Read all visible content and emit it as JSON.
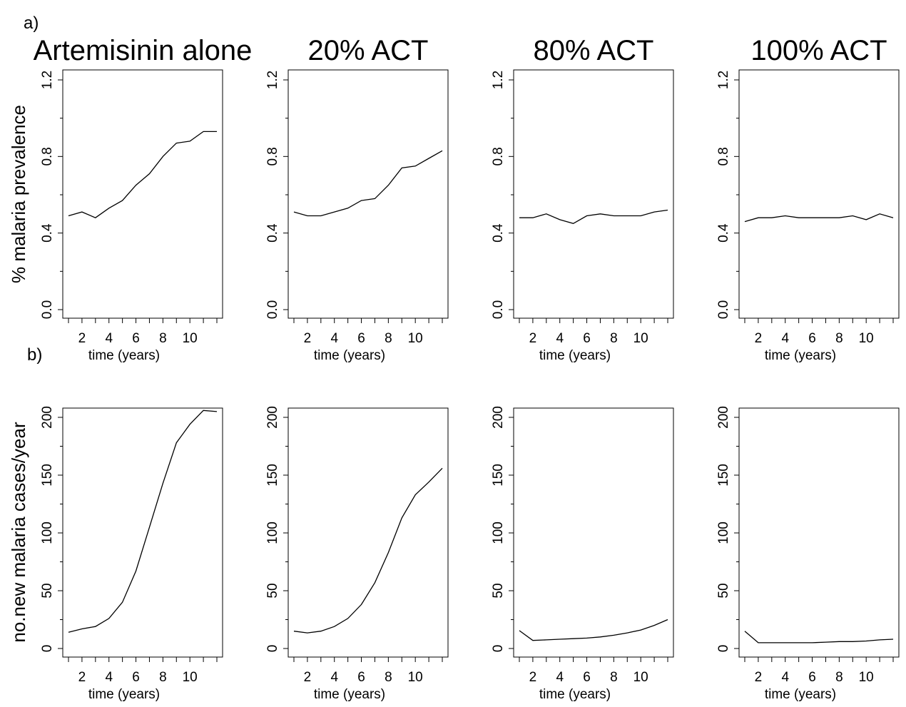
{
  "panel_labels": {
    "a": "a)",
    "b": "b)"
  },
  "column_titles": [
    "Artemisinin alone",
    "20% ACT",
    "80% ACT",
    "100% ACT"
  ],
  "chart_data": [
    {
      "type": "line",
      "row": "a",
      "title": "Artemisinin alone",
      "xlabel": "time (years)",
      "ylabel": "% malaria prevalence",
      "xlim": [
        1,
        12
      ],
      "ylim": [
        0,
        1.2
      ],
      "xticks": [
        2,
        4,
        6,
        8,
        10
      ],
      "yticks": [
        0.0,
        0.4,
        0.8,
        1.2
      ],
      "ytick_labels": [
        "0.0",
        "0.4",
        "0.8",
        "1.2"
      ],
      "x": [
        1,
        2,
        3,
        4,
        5,
        6,
        7,
        8,
        9,
        10,
        11,
        12
      ],
      "y": [
        0.49,
        0.51,
        0.48,
        0.53,
        0.57,
        0.65,
        0.71,
        0.8,
        0.87,
        0.88,
        0.93,
        0.93
      ]
    },
    {
      "type": "line",
      "row": "a",
      "title": "20% ACT",
      "xlabel": "time (years)",
      "ylabel": "",
      "xlim": [
        1,
        12
      ],
      "ylim": [
        0,
        1.2
      ],
      "xticks": [
        2,
        4,
        6,
        8,
        10
      ],
      "yticks": [
        0.0,
        0.4,
        0.8,
        1.2
      ],
      "ytick_labels": [
        "0.0",
        "0.4",
        "0.8",
        "1.2"
      ],
      "x": [
        1,
        2,
        3,
        4,
        5,
        6,
        7,
        8,
        9,
        10,
        11,
        12
      ],
      "y": [
        0.51,
        0.49,
        0.49,
        0.51,
        0.53,
        0.57,
        0.58,
        0.65,
        0.74,
        0.75,
        0.79,
        0.83
      ]
    },
    {
      "type": "line",
      "row": "a",
      "title": "80% ACT",
      "xlabel": "time (years)",
      "ylabel": "",
      "xlim": [
        1,
        12
      ],
      "ylim": [
        0,
        1.2
      ],
      "xticks": [
        2,
        4,
        6,
        8,
        10
      ],
      "yticks": [
        0.0,
        0.4,
        0.8,
        1.2
      ],
      "ytick_labels": [
        "0.0",
        "0.4",
        "0.8",
        "1.2"
      ],
      "x": [
        1,
        2,
        3,
        4,
        5,
        6,
        7,
        8,
        9,
        10,
        11,
        12
      ],
      "y": [
        0.48,
        0.48,
        0.5,
        0.47,
        0.45,
        0.49,
        0.5,
        0.49,
        0.49,
        0.49,
        0.51,
        0.52
      ]
    },
    {
      "type": "line",
      "row": "a",
      "title": "100% ACT",
      "xlabel": "time (years)",
      "ylabel": "",
      "xlim": [
        1,
        12
      ],
      "ylim": [
        0,
        1.2
      ],
      "xticks": [
        2,
        4,
        6,
        8,
        10
      ],
      "yticks": [
        0.0,
        0.4,
        0.8,
        1.2
      ],
      "ytick_labels": [
        "0.0",
        "0.4",
        "0.8",
        "1.2"
      ],
      "x": [
        1,
        2,
        3,
        4,
        5,
        6,
        7,
        8,
        9,
        10,
        11,
        12
      ],
      "y": [
        0.46,
        0.48,
        0.48,
        0.49,
        0.48,
        0.48,
        0.48,
        0.48,
        0.49,
        0.47,
        0.5,
        0.48
      ]
    },
    {
      "type": "line",
      "row": "b",
      "title": "",
      "xlabel": "time (years)",
      "ylabel": "no.new malaria cases/year",
      "xlim": [
        1,
        12
      ],
      "ylim": [
        0,
        200
      ],
      "xticks": [
        2,
        4,
        6,
        8,
        10
      ],
      "yticks": [
        0,
        50,
        100,
        150,
        200
      ],
      "ytick_labels": [
        "0",
        "50",
        "100",
        "150",
        "200"
      ],
      "x": [
        1,
        2,
        3,
        4,
        5,
        6,
        7,
        8,
        9,
        10,
        11,
        12
      ],
      "y": [
        14,
        17,
        19,
        26,
        40,
        67,
        105,
        143,
        178,
        194,
        206,
        205
      ]
    },
    {
      "type": "line",
      "row": "b",
      "title": "",
      "xlabel": "time (years)",
      "ylabel": "",
      "xlim": [
        1,
        12
      ],
      "ylim": [
        0,
        200
      ],
      "xticks": [
        2,
        4,
        6,
        8,
        10
      ],
      "yticks": [
        0,
        50,
        100,
        150,
        200
      ],
      "ytick_labels": [
        "0",
        "50",
        "100",
        "150",
        "200"
      ],
      "x": [
        1,
        2,
        3,
        4,
        5,
        6,
        7,
        8,
        9,
        10,
        11,
        12
      ],
      "y": [
        15,
        13.5,
        15,
        19,
        26,
        38,
        57,
        83,
        113,
        133,
        144,
        156
      ]
    },
    {
      "type": "line",
      "row": "b",
      "title": "",
      "xlabel": "time (years)",
      "ylabel": "",
      "xlim": [
        1,
        12
      ],
      "ylim": [
        0,
        200
      ],
      "xticks": [
        2,
        4,
        6,
        8,
        10
      ],
      "yticks": [
        0,
        50,
        100,
        150,
        200
      ],
      "ytick_labels": [
        "0",
        "50",
        "100",
        "150",
        "200"
      ],
      "x": [
        1,
        2,
        3,
        4,
        5,
        6,
        7,
        8,
        9,
        10,
        11,
        12
      ],
      "y": [
        15.5,
        7,
        7.5,
        8,
        8.5,
        9,
        10,
        11.5,
        13.5,
        16,
        20,
        25
      ]
    },
    {
      "type": "line",
      "row": "b",
      "title": "",
      "xlabel": "time (years)",
      "ylabel": "",
      "xlim": [
        1,
        12
      ],
      "ylim": [
        0,
        200
      ],
      "xticks": [
        2,
        4,
        6,
        8,
        10
      ],
      "yticks": [
        0,
        50,
        100,
        150,
        200
      ],
      "ytick_labels": [
        "0",
        "50",
        "100",
        "150",
        "200"
      ],
      "x": [
        1,
        2,
        3,
        4,
        5,
        6,
        7,
        8,
        9,
        10,
        11,
        12
      ],
      "y": [
        15,
        5,
        5,
        5,
        5,
        5,
        5.5,
        6,
        6,
        6.5,
        7.5,
        8
      ]
    }
  ]
}
